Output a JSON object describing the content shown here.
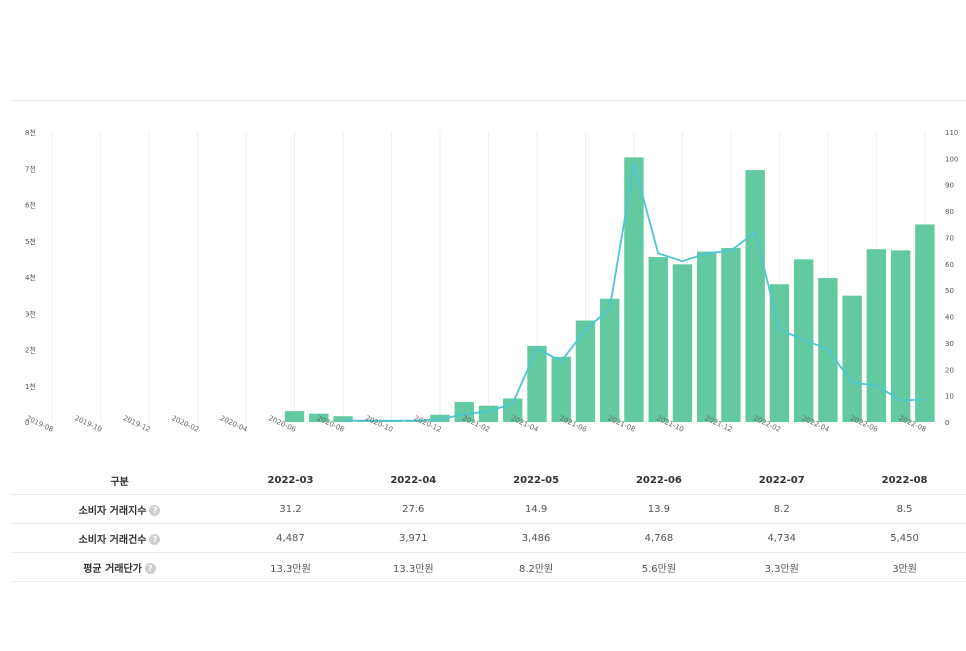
{
  "chart_data": {
    "type": "bar+line",
    "x": [
      "2019-08",
      "2019-09",
      "2019-10",
      "2019-11",
      "2019-12",
      "2020-01",
      "2020-02",
      "2020-03",
      "2020-04",
      "2020-05",
      "2020-06",
      "2020-07",
      "2020-08",
      "2020-09",
      "2020-10",
      "2020-11",
      "2020-12",
      "2021-01",
      "2021-02",
      "2021-03",
      "2021-04",
      "2021-05",
      "2021-06",
      "2021-07",
      "2021-08",
      "2021-09",
      "2021-10",
      "2021-11",
      "2021-12",
      "2022-01",
      "2022-02",
      "2022-03",
      "2022-04",
      "2022-05",
      "2022-06",
      "2022-07",
      "2022-08"
    ],
    "xtick_labels": [
      "2019-08",
      "2019-10",
      "2019-12",
      "2020-02",
      "2020-04",
      "2020-06",
      "2020-08",
      "2020-10",
      "2020-12",
      "2021-02",
      "2021-04",
      "2021-06",
      "2021-08",
      "2021-10",
      "2021-12",
      "2022-02",
      "2022-04",
      "2022-06",
      "2022-08"
    ],
    "series": [
      {
        "name": "소비자 거래건수",
        "kind": "bar",
        "axis": "left",
        "color": "#63c9a1",
        "values": [
          0,
          0,
          0,
          0,
          0,
          0,
          0,
          0,
          0,
          0,
          300,
          230,
          160,
          30,
          20,
          50,
          200,
          550,
          450,
          650,
          2100,
          1800,
          2800,
          3400,
          7300,
          4550,
          4350,
          4700,
          4800,
          6950,
          3800,
          4487,
          3971,
          3486,
          4768,
          4734,
          5450
        ]
      },
      {
        "name": "소비자 거래지수",
        "kind": "line",
        "axis": "right",
        "color": "#4dc6cf",
        "values": [
          null,
          null,
          null,
          null,
          null,
          null,
          null,
          null,
          null,
          null,
          null,
          null,
          0.5,
          0.5,
          0.5,
          0.5,
          1,
          3,
          4,
          7,
          28,
          23,
          35,
          43,
          98,
          64,
          61,
          64,
          65,
          72,
          35,
          31.2,
          27.6,
          14.9,
          13.9,
          8.2,
          8.5
        ]
      }
    ],
    "left_axis": {
      "range": [
        0,
        8000
      ],
      "ticks": [
        "0",
        "1천",
        "2천",
        "3천",
        "4천",
        "5천",
        "6천",
        "7천",
        "8천"
      ]
    },
    "right_axis": {
      "range": [
        0,
        110
      ],
      "ticks": [
        "0",
        "10",
        "20",
        "30",
        "40",
        "50",
        "60",
        "70",
        "80",
        "90",
        "100",
        "110"
      ]
    }
  },
  "table": {
    "header": "구분",
    "columns": [
      "2022-03",
      "2022-04",
      "2022-05",
      "2022-06",
      "2022-07",
      "2022-08"
    ],
    "rows": [
      {
        "label": "소비자 거래지수",
        "values": [
          "31.2",
          "27.6",
          "14.9",
          "13.9",
          "8.2",
          "8.5"
        ]
      },
      {
        "label": "소비자 거래건수",
        "values": [
          "4,487",
          "3,971",
          "3,486",
          "4,768",
          "4,734",
          "5,450"
        ]
      },
      {
        "label": "평균 거래단가",
        "values": [
          "13.3만원",
          "13.3만원",
          "8.2만원",
          "5.6만원",
          "3.3만원",
          "3만원"
        ]
      }
    ],
    "info_icon": "?"
  }
}
